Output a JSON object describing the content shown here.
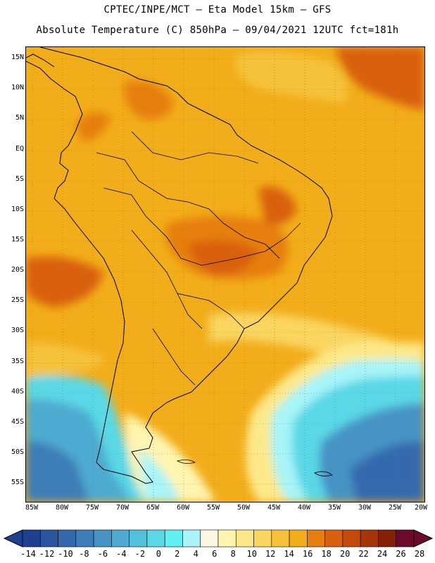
{
  "header": {
    "line1": "CPTEC/INPE/MCT –  Eta Model 15km – GFS",
    "line2": "Absolute Temperature (C) 850hPa – 09/04/2021 12UTC fct=181h"
  },
  "map": {
    "lat_labels": [
      "15N",
      "10N",
      "5N",
      "EQ",
      "5S",
      "10S",
      "15S",
      "20S",
      "25S",
      "30S",
      "35S",
      "40S",
      "45S",
      "50S",
      "55S"
    ],
    "lon_labels": [
      "85W",
      "80W",
      "75W",
      "70W",
      "65W",
      "60W",
      "55W",
      "50W",
      "45W",
      "40W",
      "35W",
      "30W",
      "25W",
      "20W"
    ]
  },
  "colorbar": {
    "labels": [
      "-14",
      "-12",
      "-10",
      "-8",
      "-6",
      "-4",
      "-2",
      "0",
      "2",
      "4",
      "6",
      "8",
      "10",
      "12",
      "14",
      "16",
      "18",
      "20",
      "22",
      "24",
      "26",
      "28"
    ],
    "colors": [
      "#1f3f8f",
      "#2a56a0",
      "#3469ad",
      "#3d7db8",
      "#4693c4",
      "#4eaad0",
      "#52c2dc",
      "#5ad8e6",
      "#62eef2",
      "#a8f4f8",
      "#fdf8e2",
      "#fff5b0",
      "#fde98a",
      "#f9d660",
      "#f5c23a",
      "#f2ad1a",
      "#e67f10",
      "#d9600c",
      "#c44a0a",
      "#a53608",
      "#852006",
      "#6b0a2a"
    ],
    "left_arrow_color": "#1f3f8f",
    "right_arrow_color": "#6b0a2a"
  }
}
